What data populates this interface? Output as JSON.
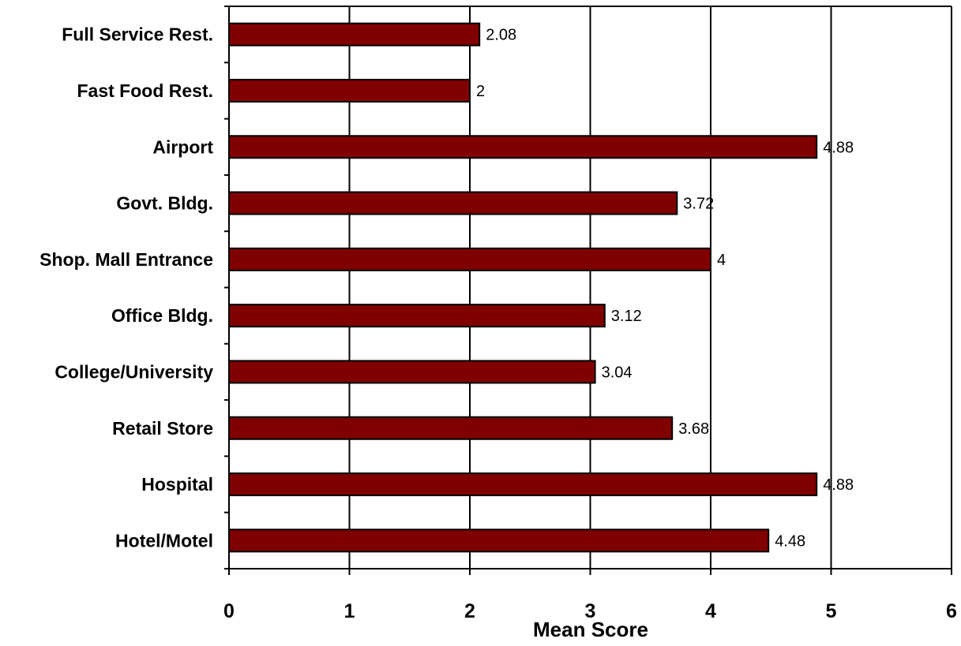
{
  "chart_data": {
    "type": "bar",
    "orientation": "horizontal",
    "categories": [
      "Full Service Rest.",
      "Fast Food Rest.",
      "Airport",
      "Govt. Bldg.",
      "Shop. Mall Entrance",
      "Office Bldg.",
      "College/University",
      "Retail Store",
      "Hospital",
      "Hotel/Motel"
    ],
    "values": [
      2.08,
      2,
      4.88,
      3.72,
      4,
      3.12,
      3.04,
      3.68,
      4.88,
      4.48
    ],
    "data_labels": [
      "2.08",
      "2",
      "4.88",
      "3.72",
      "4",
      "3.12",
      "3.04",
      "3.68",
      "4.88",
      "4.48"
    ],
    "xlabel": "Mean Score",
    "ylabel": "",
    "title": "",
    "xlim": [
      0,
      6
    ],
    "xticks": [
      0,
      1,
      2,
      3,
      4,
      5,
      6
    ],
    "xtick_labels": [
      "0",
      "1",
      "2",
      "3",
      "4",
      "5",
      "6"
    ],
    "grid": "vertical",
    "legend": "none",
    "bar_color": "#800000",
    "bar_edge_color": "#000000"
  }
}
